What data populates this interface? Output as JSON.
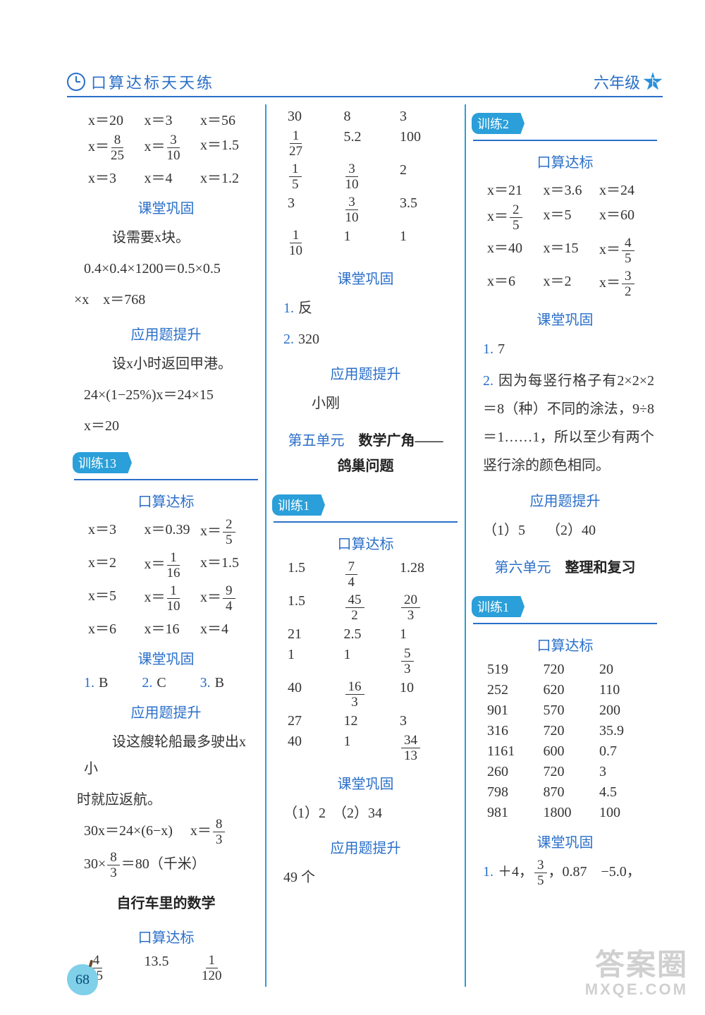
{
  "header": {
    "title_left": "口算达标天天练",
    "title_right": "六年级",
    "badge": "下"
  },
  "page_number": "68",
  "watermark": {
    "line1": "答案圈",
    "line2": "MXQE.COM"
  },
  "labels": {
    "kousuan": "口算达标",
    "ketang": "课堂巩固",
    "yingyong": "应用题提升"
  },
  "col1": {
    "top_rows": [
      [
        "x＝20",
        "x＝3",
        "x＝56"
      ],
      [
        "x＝{8/25}",
        "x＝{3/10}",
        "x＝1.5"
      ],
      [
        "x＝3",
        "x＝4",
        "x＝1.2"
      ]
    ],
    "ketang_text1": "设需要x块。",
    "ketang_text2": "0.4×0.4×1200＝0.5×0.5",
    "ketang_text3": "×x　x＝768",
    "ying_text1": "设x小时返回甲港。",
    "ying_text2": "24×(1−25%)x＝24×15",
    "ying_text3": "x＝20",
    "pill13": "训练13",
    "k13_rows": [
      [
        "x＝3",
        "x＝0.39",
        "x＝{2/5}"
      ],
      [
        "x＝2",
        "x＝{1/16}",
        "x＝1.5"
      ],
      [
        "x＝5",
        "x＝{1/10}",
        "x＝{9/4}"
      ],
      [
        "x＝6",
        "x＝16",
        "x＝4"
      ]
    ],
    "kt13": [
      [
        "1.",
        "B"
      ],
      [
        "2.",
        "C"
      ],
      [
        "3.",
        "B"
      ]
    ],
    "ying13_text1": "设这艘轮船最多驶出x小",
    "ying13_text2": "时就应返航。",
    "ying13_eq1_a": "30x＝24×(6−x)",
    "ying13_eq1_b": "x＝{8/3}",
    "ying13_eq2": "30×{8/3}＝80（千米）",
    "sub_title": "自行车里的数学",
    "sub_rows": [
      [
        "{4/15}",
        "13.5",
        "{1/120}"
      ]
    ]
  },
  "col2": {
    "top_rows": [
      [
        "30",
        "8",
        "3"
      ],
      [
        "{1/27}",
        "5.2",
        "100"
      ],
      [
        "{1/5}",
        "{3/10}",
        "2"
      ],
      [
        "3",
        "{3/10}",
        "3.5"
      ],
      [
        "{1/10}",
        "1",
        "1"
      ]
    ],
    "kt_items": [
      [
        "1.",
        "反"
      ],
      [
        "2.",
        "320"
      ]
    ],
    "ying_ans": "小刚",
    "unit5_label": "第五单元",
    "unit5_title1": "数学广角——",
    "unit5_title2": "鸽巢问题",
    "pill1": "训练1",
    "k_rows": [
      [
        "1.5",
        "{7/4}",
        "1.28"
      ],
      [
        "1.5",
        "{45/2}",
        "{20/3}"
      ],
      [
        "21",
        "2.5",
        "1"
      ],
      [
        "1",
        "1",
        "{5/3}"
      ],
      [
        "40",
        "{16/3}",
        "10"
      ],
      [
        "27",
        "12",
        "3"
      ],
      [
        "40",
        "1",
        "{34/13}"
      ]
    ],
    "kt_ans": "（1）2　（2）34",
    "ying_ans2": "49 个"
  },
  "col3": {
    "pill2": "训练2",
    "k_rows": [
      [
        "x＝21",
        "x＝3.6",
        "x＝24"
      ],
      [
        "x＝{2/5}",
        "x＝5",
        "x＝60"
      ],
      [
        "x＝40",
        "x＝15",
        "x＝{4/5}"
      ],
      [
        "x＝6",
        "x＝2",
        "x＝{3/2}"
      ]
    ],
    "kt1": "7",
    "kt2": "因为每竖行格子有2×2×2＝8（种）不同的涂法，9÷8＝1……1，所以至少有两个竖行涂的颜色相同。",
    "ying": "（1）5　　（2）40",
    "unit6_label": "第六单元",
    "unit6_title": "整理和复习",
    "pill1": "训练1",
    "k6_rows": [
      [
        "519",
        "720",
        "20"
      ],
      [
        "252",
        "620",
        "110"
      ],
      [
        "901",
        "570",
        "200"
      ],
      [
        "316",
        "720",
        "35.9"
      ],
      [
        "1161",
        "600",
        "0.7"
      ],
      [
        "260",
        "720",
        "3"
      ],
      [
        "798",
        "870",
        "4.5"
      ],
      [
        "981",
        "1800",
        "100"
      ]
    ],
    "kt6": "＋4，{3/5}，0.87　−5.0，"
  }
}
